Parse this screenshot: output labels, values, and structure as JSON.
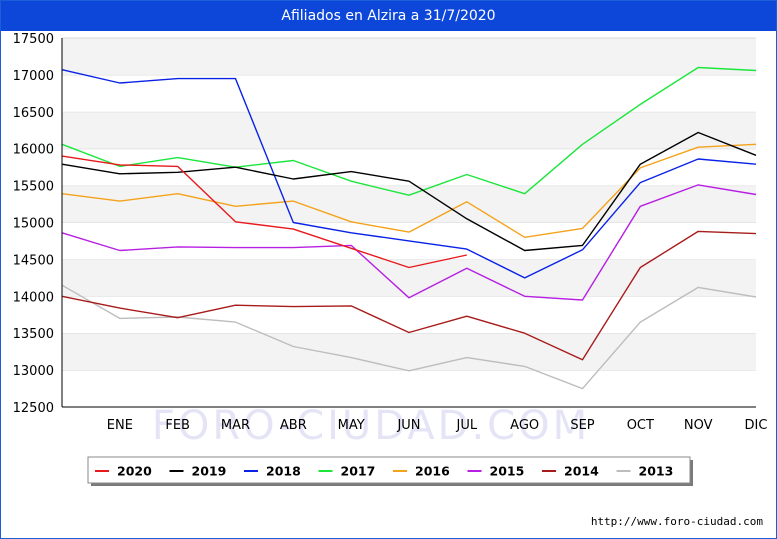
{
  "title": "Afiliados en Alzira a 31/7/2020",
  "footer_url": "http://www.foro-ciudad.com",
  "watermark": "FORO-CIUDAD.COM",
  "chart_data": {
    "type": "line",
    "title": "Afiliados en Alzira a 31/7/2020",
    "x_labels": [
      "",
      "ENE",
      "FEB",
      "MAR",
      "ABR",
      "MAY",
      "JUN",
      "JUL",
      "AGO",
      "SEP",
      "OCT",
      "NOV",
      "DIC"
    ],
    "y_ticks": [
      12500,
      13000,
      13500,
      14000,
      14500,
      15000,
      15500,
      16000,
      16500,
      17000,
      17500
    ],
    "ylim": [
      12500,
      17500
    ],
    "grid": "alternating horizontal bands",
    "legend_position": "bottom",
    "series": [
      {
        "name": "2020",
        "color": "#e8191c",
        "values": [
          15900,
          15780,
          15760,
          15010,
          14910,
          14650,
          14390,
          14560
        ]
      },
      {
        "name": "2019",
        "color": "#000000",
        "values": [
          15790,
          15660,
          15680,
          15750,
          15590,
          15690,
          15560,
          15050,
          14620,
          14690,
          15790,
          16220,
          15910
        ]
      },
      {
        "name": "2018",
        "color": "#0a22e6",
        "values": [
          17070,
          16890,
          16950,
          16950,
          15000,
          14860,
          14750,
          14640,
          14250,
          14630,
          15540,
          15860,
          15790
        ]
      },
      {
        "name": "2017",
        "color": "#1be63c",
        "values": [
          16060,
          15760,
          15880,
          15750,
          15840,
          15560,
          15370,
          15650,
          15390,
          16060,
          16600,
          17100,
          17060
        ]
      },
      {
        "name": "2016",
        "color": "#f5a21b",
        "values": [
          15390,
          15290,
          15390,
          15220,
          15290,
          15010,
          14870,
          15280,
          14800,
          14920,
          15740,
          16020,
          16060
        ]
      },
      {
        "name": "2015",
        "color": "#b71fe2",
        "values": [
          14860,
          14620,
          14670,
          14660,
          14660,
          14690,
          13980,
          14380,
          14000,
          13950,
          15220,
          15510,
          15380
        ]
      },
      {
        "name": "2014",
        "color": "#a81b1b",
        "values": [
          14000,
          13840,
          13710,
          13880,
          13860,
          13870,
          13510,
          13730,
          13500,
          13140,
          14390,
          14880,
          14850
        ]
      },
      {
        "name": "2013",
        "color": "#bdbdbd",
        "values": [
          14150,
          13700,
          13720,
          13650,
          13320,
          13170,
          12990,
          13170,
          13050,
          12750,
          13650,
          14120,
          13990
        ]
      }
    ]
  }
}
